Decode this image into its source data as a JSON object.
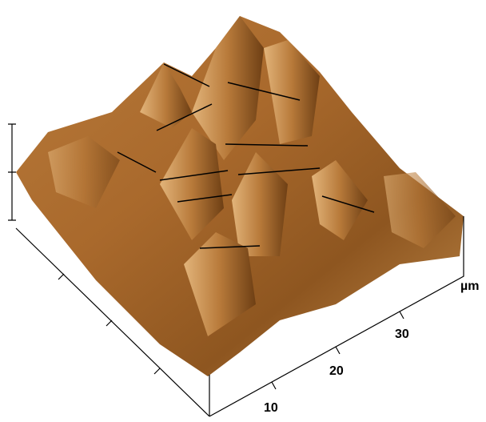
{
  "axis_labels": {
    "ticks": [
      "10",
      "20",
      "30"
    ],
    "unit": "µm"
  }
}
